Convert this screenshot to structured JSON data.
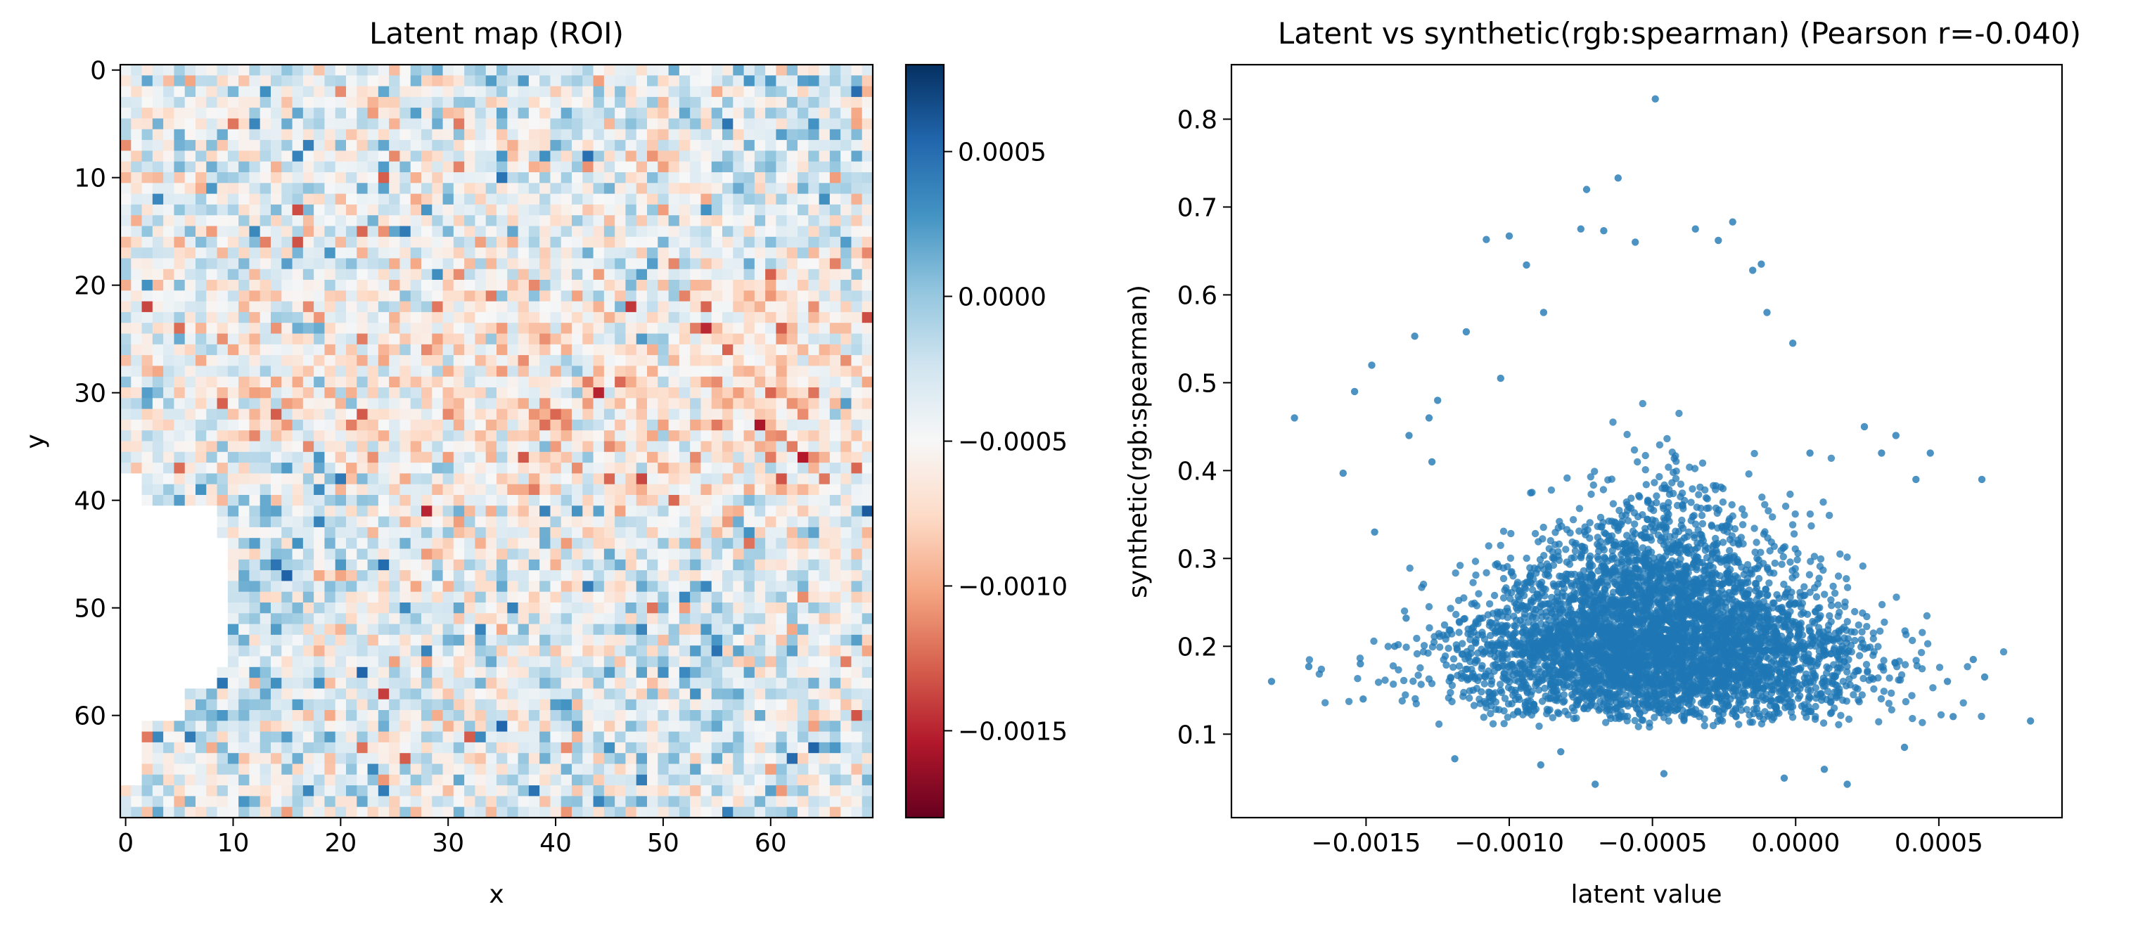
{
  "chart_data": [
    {
      "type": "heatmap",
      "title": "Latent map (ROI)",
      "xlabel": "x",
      "ylabel": "y",
      "grid": false,
      "x_range": [
        -0.5,
        69.5
      ],
      "y_range": [
        69.5,
        -0.5
      ],
      "y_inverted": true,
      "grid_size": [
        70,
        70
      ],
      "xticks": [
        0,
        10,
        20,
        30,
        40,
        50,
        60
      ],
      "yticks": [
        0,
        10,
        20,
        30,
        40,
        50,
        60
      ],
      "colormap": "RdBu",
      "colorbar": {
        "range": [
          -0.0018,
          0.0008
        ],
        "ticks": [
          0.0005,
          0.0,
          -0.0005,
          -0.001,
          -0.0015
        ],
        "ticklabels": [
          "0.0005",
          "0.0000",
          "−0.0005",
          "−0.0010",
          "−0.0015"
        ]
      },
      "value_summary": {
        "typical_range": [
          -0.0012,
          0.0002
        ],
        "masked_region": "white (no data) patch near x 0-9, y 40-60 and along left edge"
      }
    },
    {
      "type": "scatter",
      "title": "Latent vs synthetic(rgb:spearman) (Pearson r=-0.040)",
      "xlabel": "latent value",
      "ylabel": "synthetic(rgb:spearman)",
      "grid": false,
      "xlim": [
        -0.00197,
        0.00093
      ],
      "ylim": [
        0.005,
        0.862
      ],
      "xticks": [
        -0.0015,
        -0.001,
        -0.0005,
        0.0,
        0.0005
      ],
      "xticklabels": [
        "−0.0015",
        "−0.0010",
        "−0.0005",
        "0.0000",
        "0.0005"
      ],
      "yticks": [
        0.1,
        0.2,
        0.3,
        0.4,
        0.5,
        0.6,
        0.7,
        0.8
      ],
      "yticklabels": [
        "0.1",
        "0.2",
        "0.3",
        "0.4",
        "0.5",
        "0.6",
        "0.7",
        "0.8"
      ],
      "color": "#1f77b4",
      "n_points": 4900,
      "points": [
        [
          -0.00183,
          0.16
        ],
        [
          -0.00175,
          0.46
        ],
        [
          -0.0017,
          0.177
        ],
        [
          -0.00158,
          0.397
        ],
        [
          -0.00154,
          0.49
        ],
        [
          -0.00152,
          0.18
        ],
        [
          -0.00151,
          0.14
        ],
        [
          -0.00148,
          0.52
        ],
        [
          -0.00147,
          0.33
        ],
        [
          -0.0014,
          0.2
        ],
        [
          -0.00136,
          0.232
        ],
        [
          -0.00135,
          0.44
        ],
        [
          -0.00133,
          0.553
        ],
        [
          -0.00128,
          0.46
        ],
        [
          -0.00127,
          0.41
        ],
        [
          -0.00125,
          0.48
        ],
        [
          -0.00119,
          0.072
        ],
        [
          -0.00115,
          0.558
        ],
        [
          -0.00108,
          0.663
        ],
        [
          -0.00103,
          0.505
        ],
        [
          -0.001,
          0.667
        ],
        [
          -0.00094,
          0.634
        ],
        [
          -0.00089,
          0.065
        ],
        [
          -0.00088,
          0.58
        ],
        [
          -0.00082,
          0.08
        ],
        [
          -0.00075,
          0.675
        ],
        [
          -0.00073,
          0.72
        ],
        [
          -0.0007,
          0.043
        ],
        [
          -0.00067,
          0.673
        ],
        [
          -0.00062,
          0.733
        ],
        [
          -0.00056,
          0.66
        ],
        [
          -0.00049,
          0.823
        ],
        [
          -0.00046,
          0.055
        ],
        [
          -0.00035,
          0.675
        ],
        [
          -0.00027,
          0.662
        ],
        [
          -0.00022,
          0.683
        ],
        [
          -0.00015,
          0.628
        ],
        [
          -0.00012,
          0.635
        ],
        [
          -0.0001,
          0.58
        ],
        [
          -4e-05,
          0.05
        ],
        [
          -1e-05,
          0.545
        ],
        [
          5e-05,
          0.42
        ],
        [
          0.0001,
          0.06
        ],
        [
          0.00018,
          0.043
        ],
        [
          0.00024,
          0.45
        ],
        [
          0.0003,
          0.42
        ],
        [
          0.00035,
          0.44
        ],
        [
          0.00038,
          0.085
        ],
        [
          0.00042,
          0.39
        ],
        [
          0.00047,
          0.42
        ],
        [
          0.00053,
          0.16
        ],
        [
          0.00055,
          0.12
        ],
        [
          0.00062,
          0.185
        ],
        [
          0.00065,
          0.39
        ],
        [
          0.00066,
          0.165
        ],
        [
          0.00082,
          0.115
        ]
      ],
      "cluster_summary": {
        "dense_core_x": [
          -0.0011,
          0.0001
        ],
        "dense_core_y": [
          0.13,
          0.3
        ],
        "center": [
          -0.00048,
          0.2
        ]
      }
    }
  ]
}
